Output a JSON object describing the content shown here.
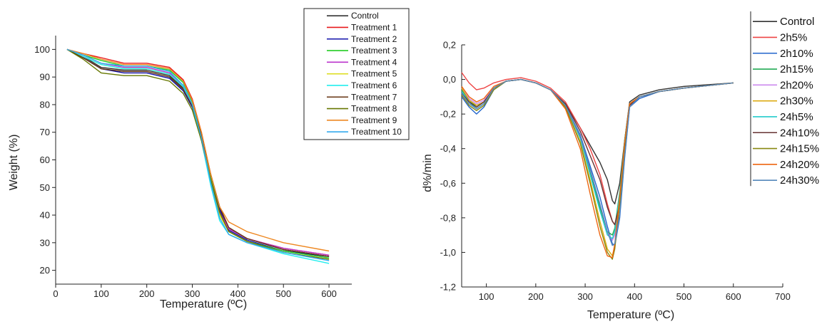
{
  "chart_data": [
    {
      "type": "line",
      "xlabel": "Temperature (ºC)",
      "ylabel": "Weight (%)",
      "xlim": [
        0,
        650
      ],
      "ylim": [
        15,
        105
      ],
      "xticks": [
        "0",
        "100",
        "200",
        "300",
        "400",
        "500",
        "600"
      ],
      "yticks": [
        "20",
        "30",
        "40",
        "50",
        "60",
        "70",
        "80",
        "90",
        "100"
      ],
      "legend_position": "top-right",
      "series": [
        {
          "name": "Control",
          "color": "#333333",
          "x": [
            25,
            60,
            100,
            150,
            200,
            250,
            280,
            300,
            320,
            340,
            360,
            380,
            420,
            500,
            600
          ],
          "y": [
            100,
            97.5,
            93.5,
            92.5,
            92.5,
            90.5,
            86,
            80,
            69,
            55,
            43,
            35,
            31.5,
            27.5,
            25
          ]
        },
        {
          "name": "Treatment 1",
          "color": "#e8191b",
          "x": [
            25,
            60,
            100,
            150,
            200,
            250,
            280,
            300,
            320,
            340,
            360,
            380,
            420,
            500,
            600
          ],
          "y": [
            100,
            98.5,
            97,
            95,
            95,
            93.5,
            89,
            82,
            70,
            55,
            42,
            35,
            31.5,
            28,
            25.5
          ]
        },
        {
          "name": "Treatment 2",
          "color": "#1111aa",
          "x": [
            25,
            60,
            100,
            150,
            200,
            250,
            280,
            300,
            320,
            340,
            360,
            380,
            420,
            500,
            600
          ],
          "y": [
            100,
            97,
            93,
            91.5,
            91.5,
            89.5,
            85,
            79,
            68,
            54,
            42,
            34.5,
            31,
            27,
            25
          ]
        },
        {
          "name": "Treatment 3",
          "color": "#22cc22",
          "x": [
            25,
            60,
            100,
            150,
            200,
            250,
            280,
            300,
            320,
            340,
            360,
            380,
            420,
            500,
            600
          ],
          "y": [
            100,
            98,
            96,
            94,
            94,
            92.5,
            88,
            81,
            69,
            54,
            41,
            34,
            30.5,
            27,
            24.5
          ]
        },
        {
          "name": "Treatment 4",
          "color": "#bb33cc",
          "x": [
            25,
            60,
            100,
            150,
            200,
            250,
            280,
            300,
            320,
            340,
            360,
            380,
            420,
            500,
            600
          ],
          "y": [
            100,
            98,
            95,
            93.5,
            93.5,
            91.5,
            87,
            80,
            68,
            53,
            41,
            35,
            31.5,
            28,
            25.5
          ]
        },
        {
          "name": "Treatment 5",
          "color": "#dddd22",
          "x": [
            25,
            60,
            100,
            150,
            200,
            250,
            280,
            300,
            320,
            340,
            360,
            380,
            420,
            500,
            600
          ],
          "y": [
            100,
            97.5,
            94.5,
            93,
            93,
            91,
            86.5,
            80,
            68,
            53,
            40,
            34,
            30.5,
            26.5,
            24
          ]
        },
        {
          "name": "Treatment 6",
          "color": "#22eeee",
          "x": [
            25,
            60,
            100,
            150,
            200,
            250,
            280,
            300,
            320,
            340,
            360,
            380,
            420,
            500,
            600
          ],
          "y": [
            100,
            97.5,
            94.5,
            93,
            93,
            91,
            86.5,
            79.5,
            67,
            51,
            38,
            33,
            30,
            26,
            22.5
          ]
        },
        {
          "name": "Treatment 7",
          "color": "#663311",
          "x": [
            25,
            60,
            100,
            150,
            200,
            250,
            280,
            300,
            320,
            340,
            360,
            380,
            420,
            500,
            600
          ],
          "y": [
            100,
            97,
            93,
            92,
            92,
            90,
            85.5,
            79.5,
            69,
            55,
            43,
            35.5,
            31.5,
            27.5,
            25
          ]
        },
        {
          "name": "Treatment 8",
          "color": "#667700",
          "x": [
            25,
            60,
            100,
            150,
            200,
            250,
            280,
            300,
            320,
            340,
            360,
            380,
            420,
            500,
            600
          ],
          "y": [
            100,
            96.5,
            91.5,
            90.5,
            90.5,
            88.5,
            84,
            78,
            67,
            53,
            41,
            34,
            30.5,
            26.5,
            24
          ]
        },
        {
          "name": "Treatment 9",
          "color": "#ee8822",
          "x": [
            25,
            60,
            100,
            150,
            200,
            250,
            280,
            300,
            320,
            340,
            360,
            380,
            420,
            500,
            600
          ],
          "y": [
            100,
            98.5,
            96.5,
            94.5,
            94.5,
            93,
            88.5,
            81.5,
            70,
            55,
            43,
            37.5,
            34,
            30,
            27
          ]
        },
        {
          "name": "Treatment 10",
          "color": "#33aaee",
          "x": [
            25,
            60,
            100,
            150,
            200,
            250,
            280,
            300,
            320,
            340,
            360,
            380,
            420,
            500,
            600
          ],
          "y": [
            100,
            98,
            95,
            94,
            94,
            92,
            87,
            80,
            68,
            52,
            39,
            33,
            30,
            26.5,
            23.5
          ]
        }
      ]
    },
    {
      "type": "line",
      "xlabel": "Temperature (ºC)",
      "ylabel": "d%/min",
      "xlim": [
        50,
        700
      ],
      "ylim": [
        -1.2,
        0.2
      ],
      "xticks": [
        "100",
        "200",
        "300",
        "400",
        "500",
        "600",
        "700"
      ],
      "yticks": [
        "0,2",
        "0,0",
        "-0,2",
        "-0,4",
        "-0,6",
        "-0,8",
        "-1,0",
        "-1,2"
      ],
      "legend_position": "top-right",
      "series": [
        {
          "name": "Control",
          "color": "#333333",
          "x": [
            50,
            65,
            80,
            95,
            115,
            140,
            170,
            200,
            230,
            260,
            290,
            310,
            330,
            345,
            355,
            360,
            370,
            380,
            390,
            410,
            450,
            500,
            600
          ],
          "y": [
            -0.08,
            -0.12,
            -0.15,
            -0.13,
            -0.05,
            -0.01,
            0.0,
            -0.02,
            -0.06,
            -0.14,
            -0.28,
            -0.38,
            -0.48,
            -0.58,
            -0.7,
            -0.72,
            -0.6,
            -0.35,
            -0.13,
            -0.09,
            -0.06,
            -0.04,
            -0.02
          ]
        },
        {
          "name": "2h5%",
          "color": "#ee4444",
          "x": [
            50,
            65,
            80,
            95,
            115,
            140,
            170,
            200,
            230,
            260,
            290,
            310,
            330,
            345,
            355,
            360,
            370,
            380,
            390,
            410,
            450,
            500,
            600
          ],
          "y": [
            0.04,
            -0.02,
            -0.06,
            -0.05,
            -0.02,
            0.0,
            0.01,
            -0.01,
            -0.05,
            -0.13,
            -0.28,
            -0.4,
            -0.55,
            -0.72,
            -0.82,
            -0.84,
            -0.7,
            -0.4,
            -0.15,
            -0.1,
            -0.07,
            -0.05,
            -0.02
          ]
        },
        {
          "name": "2h10%",
          "color": "#2266cc",
          "x": [
            50,
            65,
            80,
            95,
            115,
            140,
            170,
            200,
            230,
            260,
            290,
            310,
            330,
            345,
            355,
            360,
            370,
            380,
            390,
            410,
            450,
            500,
            600
          ],
          "y": [
            -0.1,
            -0.16,
            -0.2,
            -0.16,
            -0.06,
            -0.01,
            0.0,
            -0.02,
            -0.06,
            -0.15,
            -0.32,
            -0.5,
            -0.68,
            -0.85,
            -0.95,
            -0.96,
            -0.8,
            -0.45,
            -0.16,
            -0.11,
            -0.07,
            -0.05,
            -0.02
          ]
        },
        {
          "name": "2h15%",
          "color": "#22aa55",
          "x": [
            50,
            65,
            80,
            95,
            115,
            140,
            170,
            200,
            230,
            260,
            290,
            310,
            330,
            345,
            355,
            360,
            370,
            380,
            390,
            410,
            450,
            500,
            600
          ],
          "y": [
            -0.06,
            -0.12,
            -0.16,
            -0.13,
            -0.05,
            -0.01,
            0.0,
            -0.02,
            -0.06,
            -0.15,
            -0.34,
            -0.54,
            -0.74,
            -0.88,
            -0.9,
            -0.86,
            -0.65,
            -0.35,
            -0.14,
            -0.1,
            -0.07,
            -0.05,
            -0.02
          ]
        },
        {
          "name": "2h20%",
          "color": "#cc88ee",
          "x": [
            50,
            65,
            80,
            95,
            115,
            140,
            170,
            200,
            230,
            260,
            290,
            310,
            330,
            345,
            355,
            360,
            370,
            380,
            390,
            410,
            450,
            500,
            600
          ],
          "y": [
            -0.05,
            -0.11,
            -0.14,
            -0.12,
            -0.05,
            -0.01,
            0.0,
            -0.02,
            -0.06,
            -0.15,
            -0.33,
            -0.52,
            -0.72,
            -0.88,
            -0.93,
            -0.9,
            -0.7,
            -0.38,
            -0.15,
            -0.1,
            -0.07,
            -0.05,
            -0.02
          ]
        },
        {
          "name": "2h30%",
          "color": "#ddaa11",
          "x": [
            50,
            65,
            80,
            95,
            115,
            140,
            170,
            200,
            230,
            260,
            290,
            310,
            330,
            345,
            355,
            360,
            370,
            380,
            390,
            410,
            450,
            500,
            600
          ],
          "y": [
            -0.05,
            -0.12,
            -0.15,
            -0.13,
            -0.05,
            -0.01,
            0.0,
            -0.02,
            -0.06,
            -0.16,
            -0.36,
            -0.58,
            -0.82,
            -0.98,
            -1.02,
            -0.96,
            -0.72,
            -0.38,
            -0.14,
            -0.1,
            -0.07,
            -0.05,
            -0.02
          ]
        },
        {
          "name": "24h5%",
          "color": "#22cccc",
          "x": [
            50,
            65,
            80,
            95,
            115,
            140,
            170,
            200,
            230,
            260,
            290,
            310,
            330,
            345,
            355,
            360,
            370,
            380,
            390,
            410,
            450,
            500,
            600
          ],
          "y": [
            -0.07,
            -0.13,
            -0.17,
            -0.14,
            -0.05,
            -0.01,
            0.0,
            -0.02,
            -0.06,
            -0.15,
            -0.34,
            -0.55,
            -0.76,
            -0.9,
            -0.92,
            -0.88,
            -0.66,
            -0.36,
            -0.14,
            -0.1,
            -0.07,
            -0.05,
            -0.02
          ]
        },
        {
          "name": "24h10%",
          "color": "#663333",
          "x": [
            50,
            65,
            80,
            95,
            115,
            140,
            170,
            200,
            230,
            260,
            290,
            310,
            330,
            345,
            355,
            360,
            370,
            380,
            390,
            410,
            450,
            500,
            600
          ],
          "y": [
            -0.08,
            -0.13,
            -0.16,
            -0.13,
            -0.05,
            -0.01,
            0.0,
            -0.02,
            -0.06,
            -0.14,
            -0.3,
            -0.44,
            -0.58,
            -0.74,
            -0.82,
            -0.84,
            -0.72,
            -0.42,
            -0.15,
            -0.1,
            -0.07,
            -0.05,
            -0.02
          ]
        },
        {
          "name": "24h15%",
          "color": "#888811",
          "x": [
            50,
            65,
            80,
            95,
            115,
            140,
            170,
            200,
            230,
            260,
            290,
            310,
            330,
            345,
            355,
            360,
            370,
            380,
            390,
            410,
            450,
            500,
            600
          ],
          "y": [
            -0.09,
            -0.15,
            -0.18,
            -0.15,
            -0.06,
            -0.01,
            0.0,
            -0.02,
            -0.06,
            -0.16,
            -0.37,
            -0.6,
            -0.85,
            -1.0,
            -1.04,
            -0.98,
            -0.72,
            -0.38,
            -0.14,
            -0.1,
            -0.07,
            -0.05,
            -0.02
          ]
        },
        {
          "name": "24h20%",
          "color": "#ee6611",
          "x": [
            50,
            65,
            80,
            95,
            115,
            140,
            170,
            200,
            230,
            260,
            290,
            310,
            330,
            345,
            355,
            360,
            370,
            380,
            390,
            410,
            450,
            500,
            600
          ],
          "y": [
            -0.04,
            -0.1,
            -0.13,
            -0.11,
            -0.04,
            -0.01,
            0.0,
            -0.02,
            -0.06,
            -0.17,
            -0.4,
            -0.66,
            -0.9,
            -1.02,
            -1.03,
            -0.95,
            -0.68,
            -0.36,
            -0.14,
            -0.1,
            -0.07,
            -0.05,
            -0.02
          ]
        },
        {
          "name": "24h30%",
          "color": "#5588bb",
          "x": [
            50,
            65,
            80,
            95,
            115,
            140,
            170,
            200,
            230,
            260,
            290,
            310,
            330,
            345,
            355,
            360,
            370,
            380,
            390,
            410,
            450,
            500,
            600
          ],
          "y": [
            -0.08,
            -0.14,
            -0.17,
            -0.14,
            -0.05,
            -0.01,
            0.0,
            -0.02,
            -0.06,
            -0.15,
            -0.33,
            -0.52,
            -0.72,
            -0.88,
            -0.96,
            -0.95,
            -0.78,
            -0.44,
            -0.16,
            -0.1,
            -0.07,
            -0.05,
            -0.02
          ]
        }
      ]
    }
  ]
}
